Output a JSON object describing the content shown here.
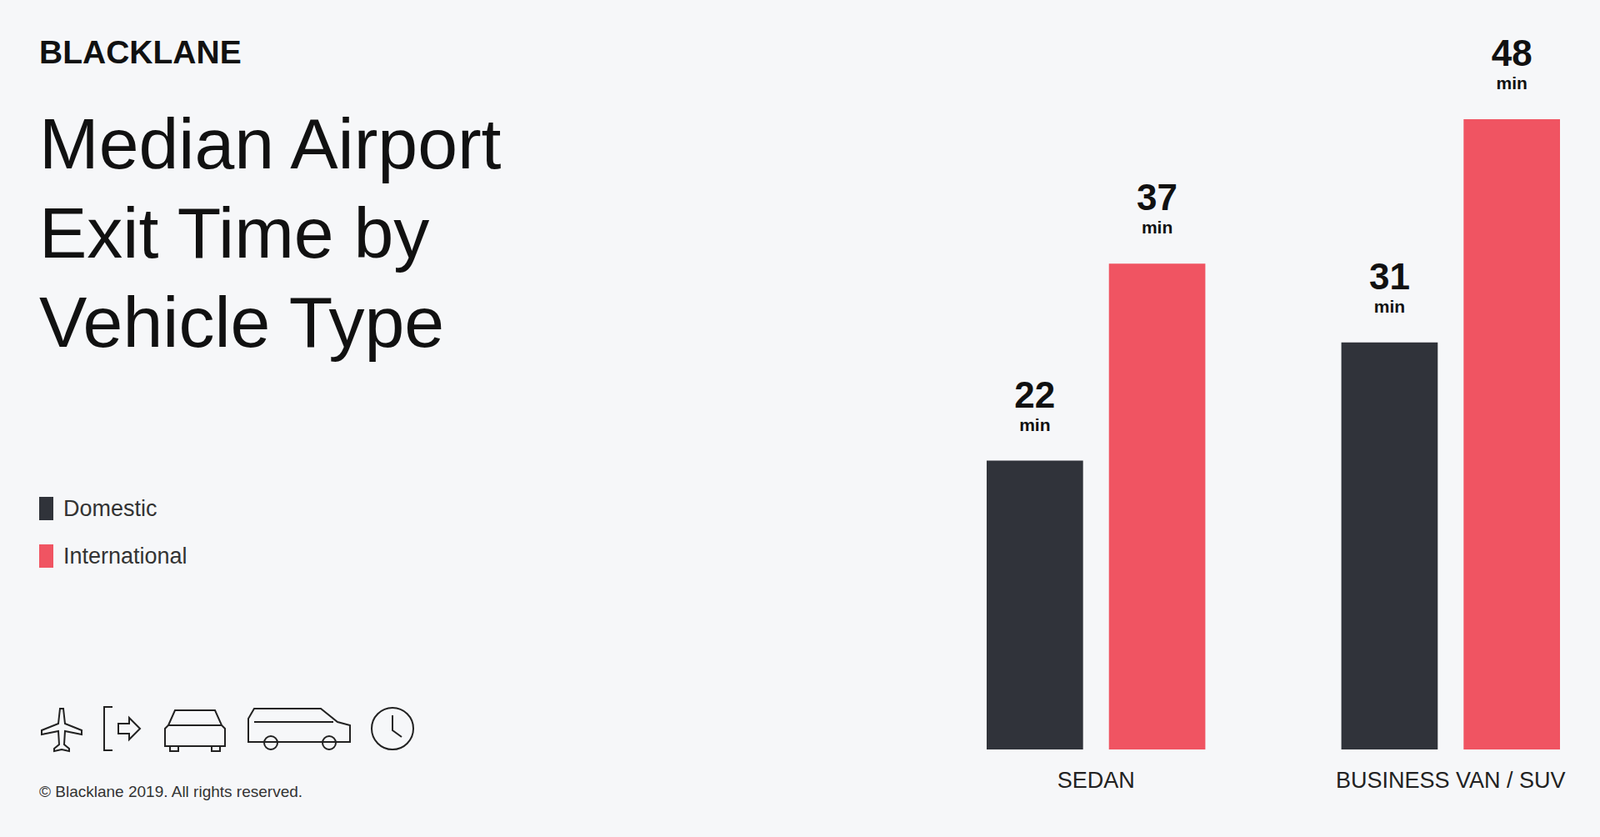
{
  "chart_data": {
    "type": "bar",
    "brand": "BLACKLANE",
    "title": "Median Airport\nExit Time by\nVehicle Type",
    "footer": "© Blacklane 2019. All rights reserved.",
    "categories": [
      "SEDAN",
      "BUSINESS VAN / SUV"
    ],
    "series": [
      {
        "name": "Domestic",
        "color": "#30333a",
        "values": [
          22,
          31
        ],
        "value_labels": [
          "22 min",
          "31 min"
        ]
      },
      {
        "name": "International",
        "color": "#f05462",
        "values": [
          37,
          48
        ],
        "value_labels": [
          "37 min",
          "48 min"
        ]
      }
    ],
    "data_labels": true,
    "tick_labels": "x",
    "legend": "left"
  }
}
